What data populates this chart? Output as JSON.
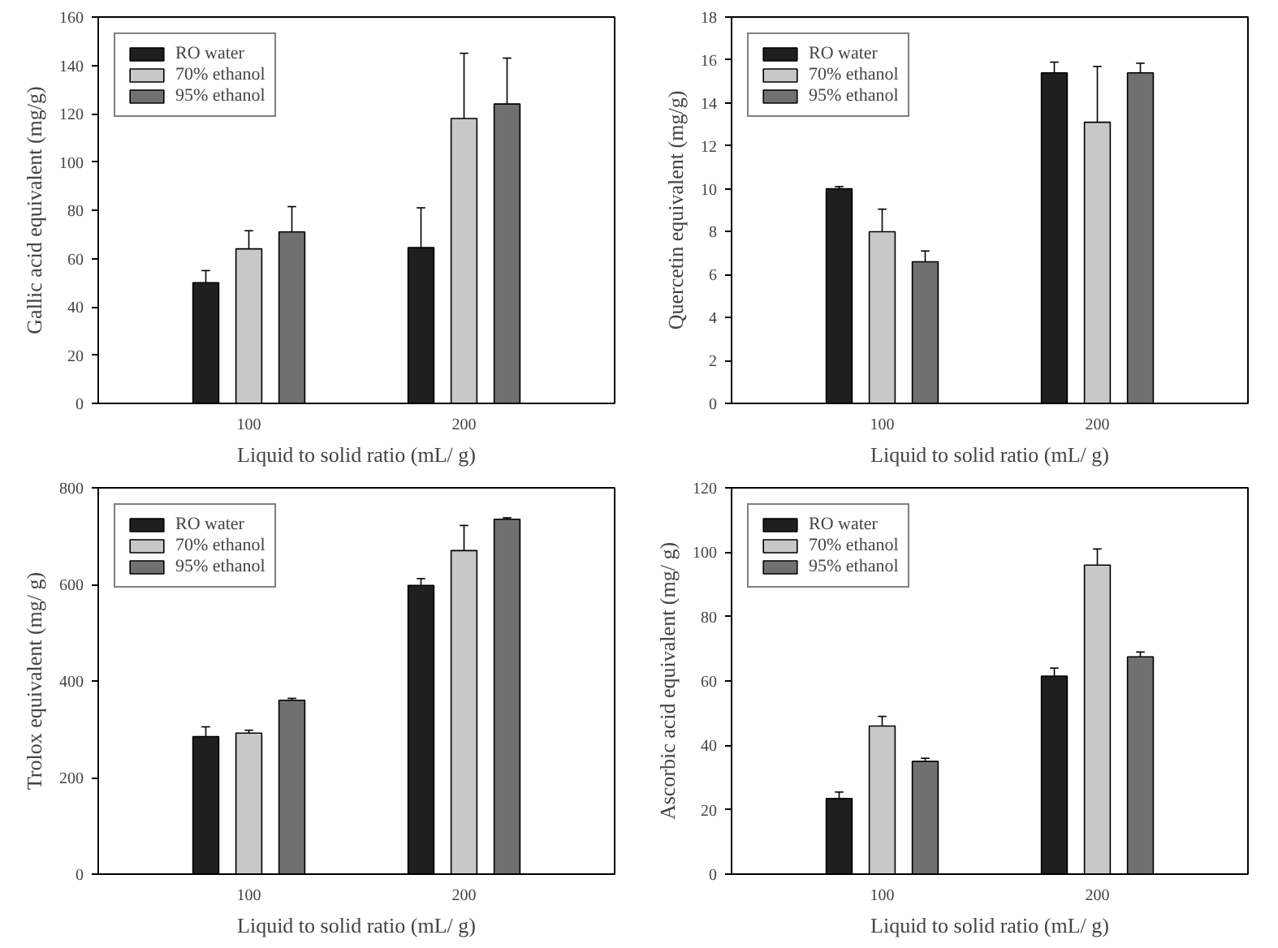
{
  "chart_data": [
    {
      "type": "bar",
      "categories": [
        "100",
        "200"
      ],
      "xlabel": "Liquid to solid ratio (mL/ g)",
      "ylabel": "Gallic acid equivalent (mg/g)",
      "ylim": [
        0,
        160
      ],
      "yticks": [
        0,
        20,
        40,
        60,
        80,
        100,
        120,
        140,
        160
      ],
      "legend": "top left",
      "grid": false,
      "series": [
        {
          "name": "RO water",
          "color": "#1f1f1f",
          "values": [
            50,
            64.5
          ],
          "errors": [
            [
              50,
              55
            ],
            [
              64.5,
              81
            ]
          ]
        },
        {
          "name": "70% ethanol",
          "color": "#c8c8c8",
          "values": [
            64,
            118
          ],
          "errors": [
            [
              64,
              71.5
            ],
            [
              118,
              145
            ]
          ]
        },
        {
          "name": "95% ethanol",
          "color": "#707070",
          "values": [
            71,
            124
          ],
          "errors": [
            [
              71,
              81.5
            ],
            [
              124,
              143
            ]
          ]
        }
      ]
    },
    {
      "type": "bar",
      "categories": [
        "100",
        "200"
      ],
      "xlabel": "Liquid to solid ratio (mL/ g)",
      "ylabel": "Quercetin equivalent (mg/g)",
      "ylim": [
        0,
        18
      ],
      "yticks": [
        0,
        2,
        4,
        6,
        8,
        10,
        12,
        14,
        16,
        18
      ],
      "legend": "top left",
      "grid": false,
      "series": [
        {
          "name": "RO water",
          "color": "#1f1f1f",
          "values": [
            10,
            15.4
          ],
          "errors": [
            [
              10,
              10.1
            ],
            [
              15.4,
              15.9
            ]
          ]
        },
        {
          "name": "70% ethanol",
          "color": "#c8c8c8",
          "values": [
            8,
            13.1
          ],
          "errors": [
            [
              8,
              9.05
            ],
            [
              13.1,
              15.7
            ]
          ]
        },
        {
          "name": "95% ethanol",
          "color": "#707070",
          "values": [
            6.6,
            15.4
          ],
          "errors": [
            [
              6.6,
              7.1
            ],
            [
              15.4,
              15.85
            ]
          ]
        }
      ]
    },
    {
      "type": "bar",
      "categories": [
        "100",
        "200"
      ],
      "xlabel": "Liquid to solid ratio (mL/ g)",
      "ylabel": "Trolox equivalent (mg/ g)",
      "ylim": [
        0,
        800
      ],
      "yticks": [
        0,
        200,
        400,
        600,
        800
      ],
      "legend": "top left",
      "grid": false,
      "series": [
        {
          "name": "RO water",
          "color": "#1f1f1f",
          "values": [
            285,
            598
          ],
          "errors": [
            [
              285,
              305
            ],
            [
              598,
              612
            ]
          ]
        },
        {
          "name": "70% ethanol",
          "color": "#c8c8c8",
          "values": [
            292,
            670
          ],
          "errors": [
            [
              292,
              298
            ],
            [
              670,
              722
            ]
          ]
        },
        {
          "name": "95% ethanol",
          "color": "#707070",
          "values": [
            360,
            735
          ],
          "errors": [
            [
              360,
              364
            ],
            [
              735,
              738
            ]
          ]
        }
      ]
    },
    {
      "type": "bar",
      "categories": [
        "100",
        "200"
      ],
      "xlabel": "Liquid to solid ratio (mL/ g)",
      "ylabel": "Ascorbic acid equivalent (mg/ g)",
      "ylim": [
        0,
        120
      ],
      "yticks": [
        0,
        20,
        40,
        60,
        80,
        100,
        120
      ],
      "legend": "top left",
      "grid": false,
      "series": [
        {
          "name": "RO water",
          "color": "#1f1f1f",
          "values": [
            23.5,
            61.5
          ],
          "errors": [
            [
              23.5,
              25.5
            ],
            [
              61.5,
              64
            ]
          ]
        },
        {
          "name": "70% ethanol",
          "color": "#c8c8c8",
          "values": [
            46,
            96
          ],
          "errors": [
            [
              46,
              49
            ],
            [
              96,
              101
            ]
          ]
        },
        {
          "name": "95% ethanol",
          "color": "#707070",
          "values": [
            35,
            67.5
          ],
          "errors": [
            [
              35,
              36
            ],
            [
              67.5,
              69
            ]
          ]
        }
      ]
    }
  ]
}
